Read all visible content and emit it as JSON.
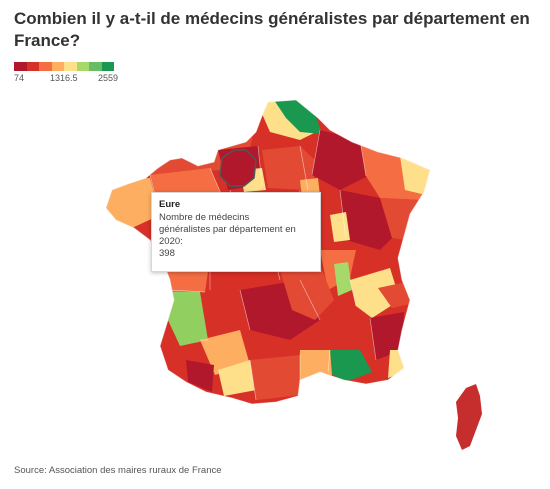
{
  "title": "Combien il y a-t-il de médecins généralistes par département en France?",
  "legend": {
    "min_label": "74",
    "mid_label": "1316.5",
    "max_label": "2559",
    "colors": [
      "#b2182b",
      "#d73027",
      "#f46d43",
      "#fdae61",
      "#fee08b",
      "#a6d96a",
      "#66bd63",
      "#1a9850"
    ]
  },
  "tooltip": {
    "name": "Eure",
    "line1": "Nombre de médecins",
    "line2": "généralistes par département en",
    "line3": "2020:",
    "value": "398"
  },
  "source": "Source: Association des maires ruraux de France",
  "map_colors": {
    "dark_red": "#b2182b",
    "red": "#d73027",
    "orange_red": "#e34a33",
    "orange": "#f46d43",
    "light_orange": "#fdae61",
    "yellow": "#fee08b",
    "light_green": "#91cf60",
    "green": "#1a9850"
  }
}
